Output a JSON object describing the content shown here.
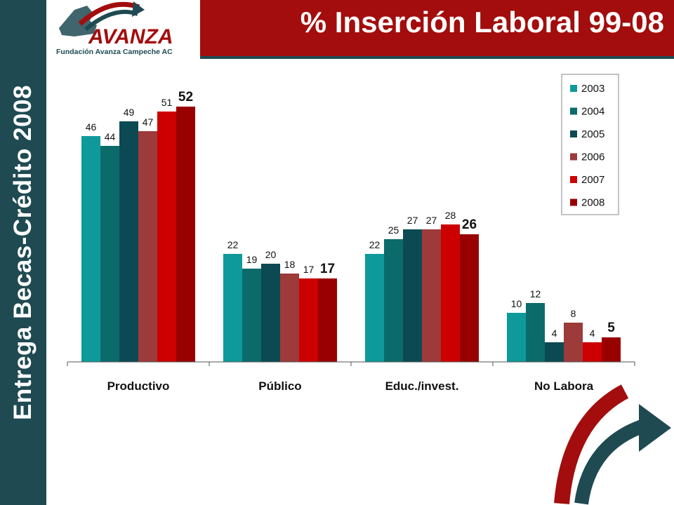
{
  "slide": {
    "side_title": "Entrega Becas-Crédito 2008",
    "title": "% Inserción Laboral 99-08",
    "logo": {
      "wordmark": "AVANZA",
      "subtitle": "Fundación Avanza Campeche AC"
    },
    "colors": {
      "side_band": "#1f4a52",
      "title_bar": "#a30d0d"
    },
    "icons": [
      "avanza-logo-icon",
      "arrow-swoosh-icon"
    ]
  },
  "chart_data": {
    "type": "bar",
    "title": "",
    "xlabel": "",
    "ylabel": "",
    "ylim": [
      0,
      55
    ],
    "grid": false,
    "legend_position": "top-right",
    "categories": [
      "Productivo",
      "Público",
      "Educ./invest.",
      "No Labora"
    ],
    "series": [
      {
        "name": "2003",
        "color": "#0e9a9a",
        "values": [
          46,
          22,
          22,
          10
        ]
      },
      {
        "name": "2004",
        "color": "#0b6b6b",
        "values": [
          44,
          19,
          25,
          12
        ]
      },
      {
        "name": "2005",
        "color": "#0b4a53",
        "values": [
          49,
          20,
          27,
          4
        ]
      },
      {
        "name": "2006",
        "color": "#9d3a3a",
        "values": [
          47,
          18,
          27,
          8
        ]
      },
      {
        "name": "2007",
        "color": "#cc0000",
        "values": [
          51,
          17,
          28,
          4
        ]
      },
      {
        "name": "2008",
        "color": "#990000",
        "values": [
          52,
          17,
          26,
          5
        ]
      }
    ],
    "highlight_series": "2008"
  }
}
